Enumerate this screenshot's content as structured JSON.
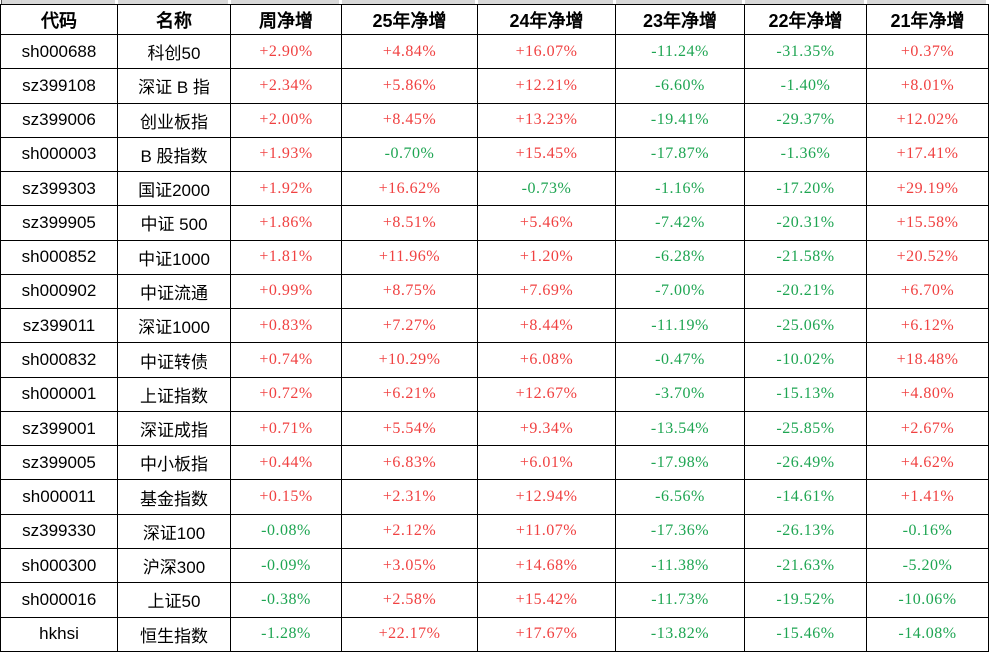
{
  "colors": {
    "positive_value": "#F04141",
    "negative_value": "#1EA552",
    "header_text": "#000000",
    "body_text": "#000000",
    "grid_line": "#000000",
    "top_strip": "#D8D8D8",
    "background": "#FFFFFF"
  },
  "chart_data": {
    "type": "table",
    "title": "",
    "legend": "red = gain (+), green = loss (-)",
    "columns": [
      "代码",
      "名称",
      "周净增",
      "25年净增",
      "24年净增",
      "23年净增",
      "22年净增",
      "21年净增"
    ],
    "rows": [
      [
        "sh000688",
        "科创50",
        "+2.90%",
        "+4.84%",
        "+16.07%",
        "-11.24%",
        "-31.35%",
        "+0.37%"
      ],
      [
        "sz399108",
        "深证 B 指",
        "+2.34%",
        "+5.86%",
        "+12.21%",
        "-6.60%",
        "-1.40%",
        "+8.01%"
      ],
      [
        "sz399006",
        "创业板指",
        "+2.00%",
        "+8.45%",
        "+13.23%",
        "-19.41%",
        "-29.37%",
        "+12.02%"
      ],
      [
        "sh000003",
        "B 股指数",
        "+1.93%",
        "-0.70%",
        "+15.45%",
        "-17.87%",
        "-1.36%",
        "+17.41%"
      ],
      [
        "sz399303",
        "国证2000",
        "+1.92%",
        "+16.62%",
        "-0.73%",
        "-1.16%",
        "-17.20%",
        "+29.19%"
      ],
      [
        "sz399905",
        "中证 500",
        "+1.86%",
        "+8.51%",
        "+5.46%",
        "-7.42%",
        "-20.31%",
        "+15.58%"
      ],
      [
        "sh000852",
        "中证1000",
        "+1.81%",
        "+11.96%",
        "+1.20%",
        "-6.28%",
        "-21.58%",
        "+20.52%"
      ],
      [
        "sh000902",
        "中证流通",
        "+0.99%",
        "+8.75%",
        "+7.69%",
        "-7.00%",
        "-20.21%",
        "+6.70%"
      ],
      [
        "sz399011",
        "深证1000",
        "+0.83%",
        "+7.27%",
        "+8.44%",
        "-11.19%",
        "-25.06%",
        "+6.12%"
      ],
      [
        "sh000832",
        "中证转债",
        "+0.74%",
        "+10.29%",
        "+6.08%",
        "-0.47%",
        "-10.02%",
        "+18.48%"
      ],
      [
        "sh000001",
        "上证指数",
        "+0.72%",
        "+6.21%",
        "+12.67%",
        "-3.70%",
        "-15.13%",
        "+4.80%"
      ],
      [
        "sz399001",
        "深证成指",
        "+0.71%",
        "+5.54%",
        "+9.34%",
        "-13.54%",
        "-25.85%",
        "+2.67%"
      ],
      [
        "sz399005",
        "中小板指",
        "+0.44%",
        "+6.83%",
        "+6.01%",
        "-17.98%",
        "-26.49%",
        "+4.62%"
      ],
      [
        "sh000011",
        "基金指数",
        "+0.15%",
        "+2.31%",
        "+12.94%",
        "-6.56%",
        "-14.61%",
        "+1.41%"
      ],
      [
        "sz399330",
        "深证100",
        "-0.08%",
        "+2.12%",
        "+11.07%",
        "-17.36%",
        "-26.13%",
        "-0.16%"
      ],
      [
        "sh000300",
        "沪深300",
        "-0.09%",
        "+3.05%",
        "+14.68%",
        "-11.38%",
        "-21.63%",
        "-5.20%"
      ],
      [
        "sh000016",
        "上证50",
        "-0.38%",
        "+2.58%",
        "+15.42%",
        "-11.73%",
        "-19.52%",
        "-10.06%"
      ],
      [
        "hkhsi",
        "恒生指数",
        "-1.28%",
        "+22.17%",
        "+17.67%",
        "-13.82%",
        "-15.46%",
        "-14.08%"
      ]
    ]
  }
}
